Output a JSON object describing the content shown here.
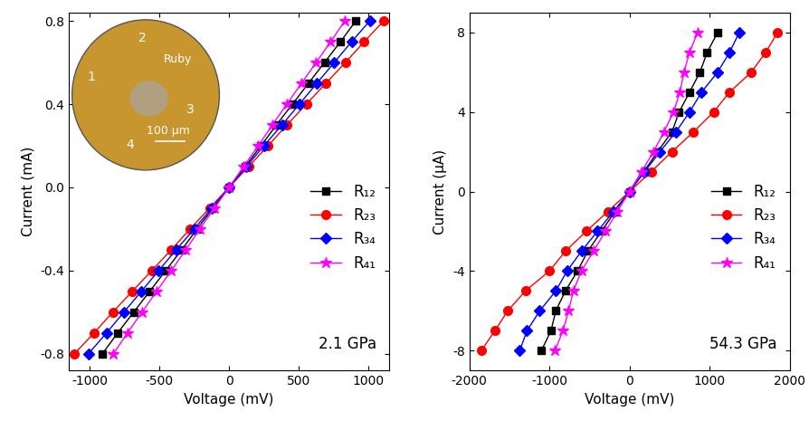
{
  "chart_data": [
    {
      "type": "line",
      "x_label": "Voltage (mV)",
      "y_label": "Current (mA)",
      "annotations": [
        "2.1 GPa"
      ],
      "inset_labels": [
        "1",
        "2",
        "3",
        "4",
        "Ruby",
        "100 μm"
      ],
      "xlim": [
        -1150,
        1150
      ],
      "xticks": [
        -1000,
        -500,
        0,
        500,
        1000
      ],
      "ylim": [
        -0.88,
        0.84
      ],
      "yticks": [
        -0.8,
        -0.4,
        0.0,
        0.4,
        0.8
      ],
      "legend": "center right",
      "series": [
        {
          "name": "R₁₂",
          "color": "#000000",
          "marker": "square",
          "line_style": "solid",
          "y": [
            -0.8,
            -0.7,
            -0.6,
            -0.5,
            -0.4,
            -0.3,
            -0.2,
            -0.1,
            0.0,
            0.1,
            0.2,
            0.3,
            0.4,
            0.5,
            0.6,
            0.7,
            0.8
          ],
          "x": [
            -910,
            -800,
            -685,
            -570,
            -455,
            -340,
            -230,
            -115,
            0,
            115,
            230,
            340,
            455,
            570,
            685,
            800,
            910
          ]
        },
        {
          "name": "R₂₃",
          "color": "#ff0000",
          "marker": "circle",
          "line_style": "solid",
          "y": [
            -0.8,
            -0.7,
            -0.6,
            -0.5,
            -0.4,
            -0.3,
            -0.2,
            -0.1,
            0.0,
            0.1,
            0.2,
            0.3,
            0.4,
            0.5,
            0.6,
            0.7,
            0.8
          ],
          "x": [
            -1110,
            -970,
            -835,
            -695,
            -555,
            -415,
            -280,
            -140,
            0,
            140,
            280,
            415,
            555,
            695,
            835,
            970,
            1110
          ]
        },
        {
          "name": "R₃₄",
          "color": "#0000ff",
          "marker": "diamond",
          "line_style": "solid",
          "y": [
            -0.8,
            -0.7,
            -0.6,
            -0.5,
            -0.4,
            -0.3,
            -0.2,
            -0.1,
            0.0,
            0.1,
            0.2,
            0.3,
            0.4,
            0.5,
            0.6,
            0.7,
            0.8
          ],
          "x": [
            -1010,
            -880,
            -755,
            -630,
            -505,
            -380,
            -250,
            -125,
            0,
            125,
            250,
            380,
            505,
            630,
            755,
            880,
            1010
          ]
        },
        {
          "name": "R₄₁",
          "color": "#ff00ff",
          "marker": "star",
          "line_style": "solid",
          "y": [
            -0.8,
            -0.7,
            -0.6,
            -0.5,
            -0.4,
            -0.3,
            -0.2,
            -0.1,
            0.0,
            0.1,
            0.2,
            0.3,
            0.4,
            0.5,
            0.6,
            0.7,
            0.8
          ],
          "x": [
            -830,
            -730,
            -625,
            -520,
            -415,
            -310,
            -210,
            -105,
            0,
            105,
            210,
            310,
            415,
            520,
            625,
            730,
            830
          ]
        }
      ]
    },
    {
      "type": "line",
      "x_label": "Voltage (mV)",
      "y_label": "Current (μA)",
      "annotations": [
        "54.3 GPa"
      ],
      "xlim": [
        -2000,
        2000
      ],
      "xticks": [
        -2000,
        -1000,
        0,
        1000,
        2000
      ],
      "ylim": [
        -9,
        9
      ],
      "yticks": [
        -8,
        -4,
        0,
        4,
        8
      ],
      "legend": "center right",
      "series": [
        {
          "name": "R₁₂",
          "color": "#000000",
          "marker": "square",
          "line_style": "solid",
          "y": [
            -8,
            -7,
            -6,
            -5,
            -4,
            -3,
            -2,
            -1,
            0,
            1,
            2,
            3,
            4,
            5,
            6,
            7,
            8
          ],
          "x": [
            -1100,
            -980,
            -920,
            -800,
            -650,
            -520,
            -350,
            -180,
            0,
            180,
            350,
            530,
            620,
            750,
            880,
            970,
            1100
          ]
        },
        {
          "name": "R₂₃",
          "color": "#ff0000",
          "marker": "circle",
          "line_style": "solid",
          "y": [
            -8,
            -7,
            -6,
            -5,
            -4,
            -3,
            -2,
            -1,
            0,
            1,
            2,
            3,
            4,
            5,
            6,
            7,
            8
          ],
          "x": [
            -1850,
            -1680,
            -1520,
            -1300,
            -1000,
            -800,
            -540,
            -270,
            0,
            270,
            530,
            800,
            1050,
            1250,
            1520,
            1700,
            1850
          ]
        },
        {
          "name": "R₃₄",
          "color": "#0000ff",
          "marker": "diamond",
          "line_style": "solid",
          "y": [
            -8,
            -7,
            -6,
            -5,
            -4,
            -3,
            -2,
            -1,
            0,
            1,
            2,
            3,
            4,
            5,
            6,
            7,
            8
          ],
          "x": [
            -1370,
            -1280,
            -1120,
            -920,
            -780,
            -600,
            -400,
            -200,
            0,
            190,
            380,
            580,
            750,
            900,
            1100,
            1250,
            1370
          ]
        },
        {
          "name": "R₄₁",
          "color": "#ff00ff",
          "marker": "star",
          "line_style": "solid",
          "y": [
            -8,
            -7,
            -6,
            -5,
            -4,
            -3,
            -2,
            -1,
            0,
            1,
            2,
            3,
            4,
            5,
            6,
            7,
            8
          ],
          "x": [
            -930,
            -830,
            -760,
            -700,
            -600,
            -450,
            -300,
            -150,
            0,
            150,
            300,
            430,
            550,
            630,
            680,
            750,
            850
          ]
        }
      ]
    }
  ]
}
